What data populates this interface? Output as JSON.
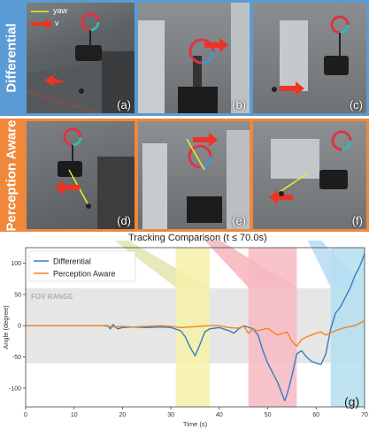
{
  "rows": [
    {
      "label": "Differential",
      "color": "#5b9bd5"
    },
    {
      "label": "Perception Aware",
      "color": "#f0883b"
    }
  ],
  "panels": [
    {
      "id": "a",
      "label": "(a)"
    },
    {
      "id": "b",
      "label": "(b)"
    },
    {
      "id": "c",
      "label": "(c)"
    },
    {
      "id": "d",
      "label": "(d)"
    },
    {
      "id": "e",
      "label": "(e)"
    },
    {
      "id": "f",
      "label": "(f)"
    }
  ],
  "legend_overlay": {
    "yaw_label": "yaw",
    "v_label": "v"
  },
  "plot_title": "Tracking Comparison (t ≤ 70.0s)",
  "plot_label": "(g)",
  "fov_label": "FOV RANGE",
  "chart_data": {
    "type": "line",
    "xlabel": "Time (s)",
    "ylabel": "Angle (degree)",
    "xlim": [
      0,
      70
    ],
    "ylim": [
      -130,
      125
    ],
    "xticks": [
      0,
      10,
      20,
      30,
      40,
      50,
      60,
      70
    ],
    "yticks": [
      -100,
      -50,
      0,
      50,
      100
    ],
    "fov_band": [
      -60,
      60
    ],
    "highlights": [
      {
        "x": [
          31,
          38
        ],
        "color": "#f4f1a8"
      },
      {
        "x": [
          46,
          56
        ],
        "color": "#f7b8c2"
      },
      {
        "x": [
          63,
          70
        ],
        "color": "#b5def0"
      }
    ],
    "legend": [
      "Differential",
      "Perception Aware"
    ],
    "series": [
      {
        "name": "Differential",
        "color": "#2f7fc1",
        "x": [
          0,
          17,
          17.5,
          18,
          19,
          20,
          22,
          25,
          28,
          30,
          32,
          33,
          34,
          35,
          36,
          37,
          38,
          40,
          42,
          43,
          44,
          45,
          47,
          48,
          49,
          50,
          51,
          52,
          53,
          53.5,
          54,
          55,
          56,
          57,
          58,
          59,
          60,
          61,
          62,
          63,
          64,
          65,
          66,
          67,
          68,
          69,
          70
        ],
        "y": [
          0,
          0,
          -5,
          2,
          -5,
          -3,
          -2,
          -3,
          -2,
          -3,
          -8,
          -18,
          -35,
          -48,
          -30,
          -10,
          -5,
          -3,
          -8,
          -12,
          -5,
          0,
          -5,
          -15,
          -40,
          -60,
          -75,
          -90,
          -110,
          -120,
          -110,
          -80,
          -45,
          -40,
          -50,
          -57,
          -60,
          -62,
          -45,
          -5,
          20,
          30,
          45,
          60,
          80,
          95,
          115
        ]
      },
      {
        "name": "Perception Aware",
        "color": "#f58220",
        "x": [
          0,
          16,
          18,
          20,
          22,
          25,
          28,
          30,
          32,
          34,
          36,
          38,
          40,
          42,
          44,
          45,
          46,
          47,
          48,
          50,
          52,
          54,
          55,
          56,
          57,
          58,
          60,
          61,
          62,
          64,
          66,
          68,
          70
        ],
        "y": [
          0,
          0,
          -2,
          -1,
          -2,
          -1,
          0,
          -1,
          -3,
          -2,
          -1,
          0,
          0,
          -3,
          -4,
          0,
          -12,
          -5,
          -8,
          -4,
          -15,
          -10,
          -25,
          -33,
          -22,
          -18,
          -12,
          -10,
          -15,
          -8,
          -3,
          0,
          8
        ]
      }
    ]
  }
}
